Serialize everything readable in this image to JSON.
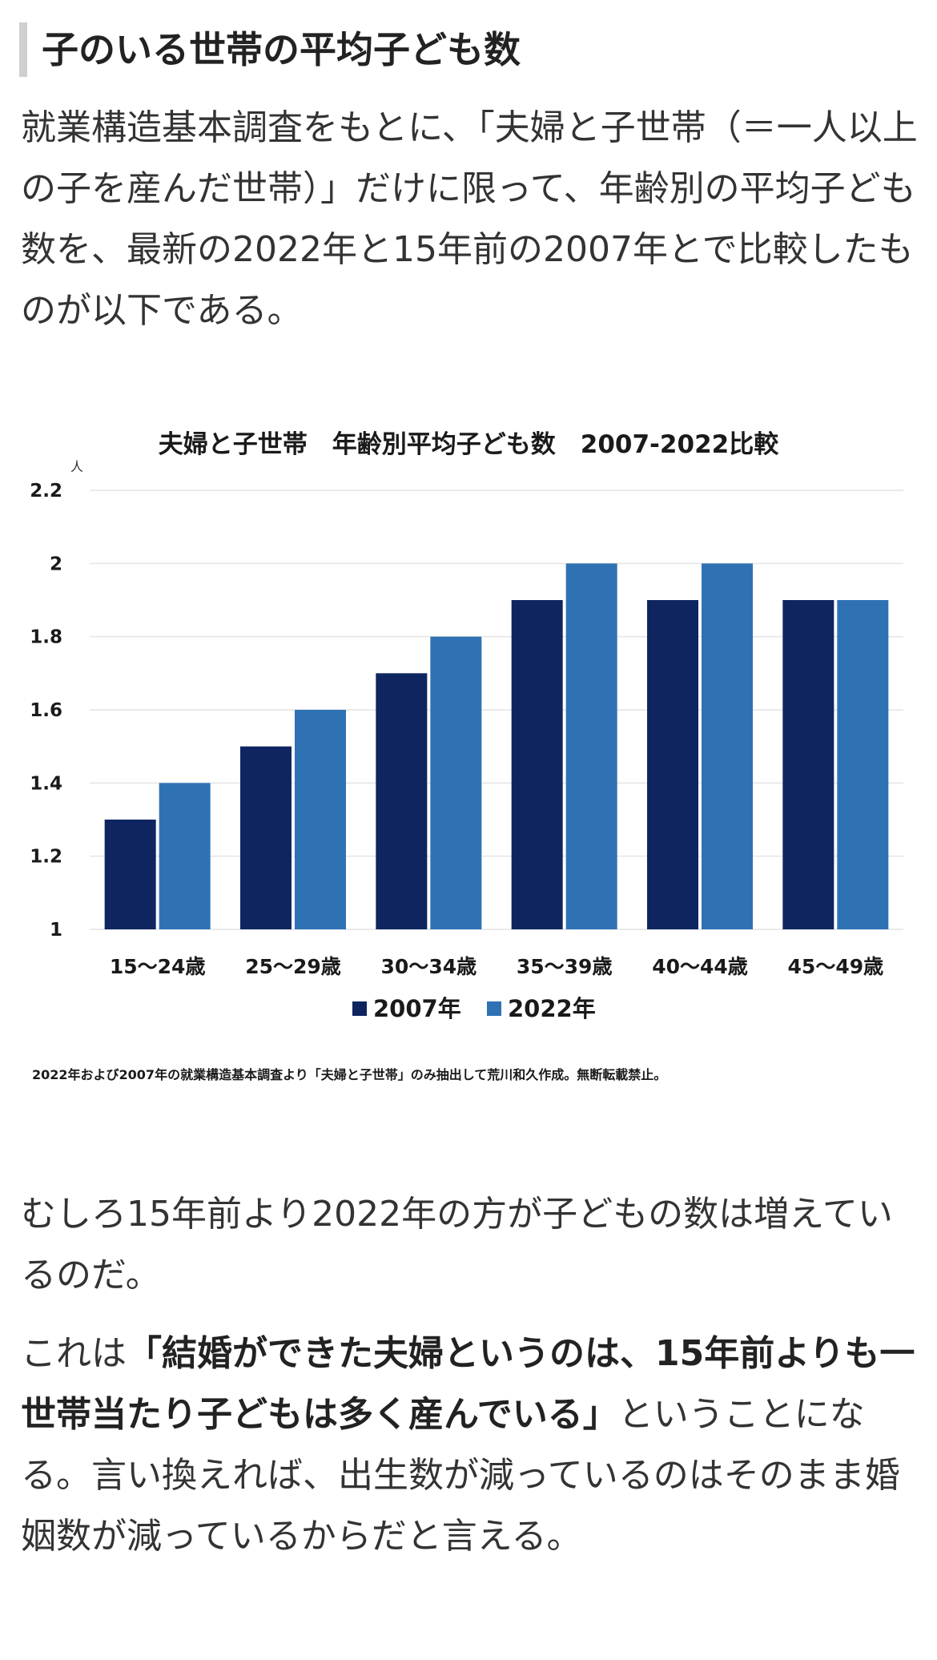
{
  "heading": "子のいる世帯の平均子ども数",
  "intro": "就業構造基本調査をもとに、「夫婦と子世帯（＝一人以上の子を産んだ世帯）」だけに限って、年齢別の平均子ども数を、最新の2022年と15年前の2007年とで比較したものが以下である。",
  "para2": "むしろ15年前より2022年の方が子どもの数は増えているのだ。",
  "para3": {
    "pre": "これは",
    "bold": "「結婚ができた夫婦というのは、15年前よりも一世帯当たり子どもは多く産んでいる」",
    "post": "ということになる。言い換えれば、出生数が減っているのはそのまま婚姻数が減っているからだと言える。"
  },
  "chart_data": {
    "type": "bar",
    "title": "夫婦と子世帯　年齢別平均子ども数　2007-2022比較",
    "ylabel": "人",
    "xlabel": "",
    "ylim": [
      1,
      2.2
    ],
    "yticks": [
      1,
      1.2,
      1.4,
      1.6,
      1.8,
      2,
      2.2
    ],
    "ytick_labels": [
      "1",
      "1.2",
      "1.4",
      "1.6",
      "1.8",
      "2",
      "2.2"
    ],
    "categories": [
      "15～24歳",
      "25～29歳",
      "30～34歳",
      "35～39歳",
      "40～44歳",
      "45～49歳"
    ],
    "series": [
      {
        "name": "2007年",
        "color": "#0e2560",
        "values": [
          1.3,
          1.5,
          1.7,
          1.9,
          1.9,
          1.9
        ]
      },
      {
        "name": "2022年",
        "color": "#2f72b4",
        "values": [
          1.4,
          1.6,
          1.8,
          2.0,
          2.0,
          1.9
        ]
      }
    ],
    "legend_position": "bottom",
    "grid": true,
    "source": "2022年および2007年の就業構造基本調査より「夫婦と子世帯」のみ抽出して荒川和久作成。無断転載禁止。"
  }
}
